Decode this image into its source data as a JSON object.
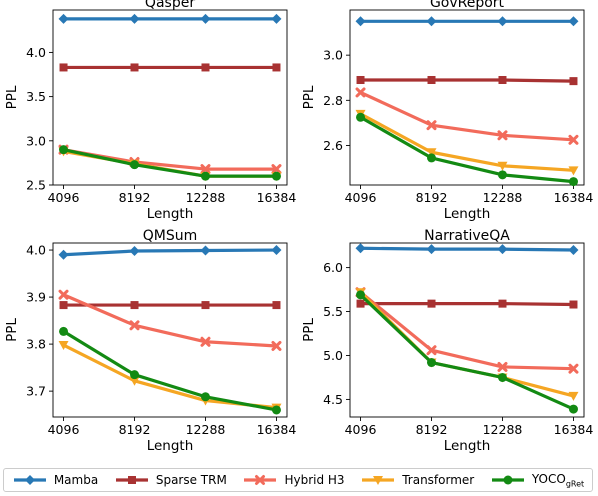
{
  "legend": [
    {
      "key": "mamba",
      "name": "Mamba",
      "color": "#2878b5",
      "marker": "diamond"
    },
    {
      "key": "sparse",
      "name": "Sparse TRM",
      "color": "#a83232",
      "marker": "square"
    },
    {
      "key": "hybrid",
      "name": "Hybrid H3",
      "color": "#f26b5b",
      "marker": "x"
    },
    {
      "key": "transformer",
      "name": "Transformer",
      "color": "#f5a623",
      "marker": "triangle-down"
    },
    {
      "key": "yoco",
      "name": "YOCO",
      "name_sub": "gRet",
      "color": "#138a13",
      "marker": "circle"
    }
  ],
  "chart_data": [
    {
      "type": "line",
      "title": "Qasper",
      "xlabel": "Length",
      "ylabel": "PPL",
      "x": [
        4096,
        8192,
        12288,
        16384
      ],
      "yticks": [
        2.5,
        3.0,
        3.5,
        4.0
      ],
      "ylim": [
        2.5,
        4.48
      ],
      "grid": false,
      "series": [
        {
          "name": "Mamba",
          "values": [
            4.38,
            4.38,
            4.38,
            4.38
          ]
        },
        {
          "name": "Sparse TRM",
          "values": [
            3.83,
            3.83,
            3.83,
            3.83
          ]
        },
        {
          "name": "Hybrid H3",
          "values": [
            2.9,
            2.76,
            2.68,
            2.68
          ]
        },
        {
          "name": "Transformer",
          "values": [
            2.88,
            2.74,
            2.6,
            2.6
          ]
        },
        {
          "name": "YOCOgRet",
          "values": [
            2.9,
            2.73,
            2.6,
            2.6
          ]
        }
      ]
    },
    {
      "type": "line",
      "title": "GovReport",
      "xlabel": "Length",
      "ylabel": "PPL",
      "x": [
        4096,
        8192,
        12288,
        16384
      ],
      "yticks": [
        2.6,
        2.8,
        3.0
      ],
      "ylim": [
        2.425,
        3.2
      ],
      "grid": false,
      "series": [
        {
          "name": "Mamba",
          "values": [
            3.15,
            3.15,
            3.15,
            3.15
          ]
        },
        {
          "name": "Sparse TRM",
          "values": [
            2.89,
            2.89,
            2.89,
            2.885
          ]
        },
        {
          "name": "Hybrid H3",
          "values": [
            2.835,
            2.69,
            2.645,
            2.625
          ]
        },
        {
          "name": "Transformer",
          "values": [
            2.74,
            2.57,
            2.51,
            2.49
          ]
        },
        {
          "name": "YOCOgRet",
          "values": [
            2.725,
            2.545,
            2.47,
            2.44
          ]
        }
      ]
    },
    {
      "type": "line",
      "title": "QMSum",
      "xlabel": "Length",
      "ylabel": "PPL",
      "x": [
        4096,
        8192,
        12288,
        16384
      ],
      "yticks": [
        3.7,
        3.8,
        3.9,
        4.0
      ],
      "ylim": [
        3.645,
        4.015
      ],
      "grid": false,
      "series": [
        {
          "name": "Mamba",
          "values": [
            3.99,
            3.998,
            3.999,
            4.0
          ]
        },
        {
          "name": "Sparse TRM",
          "values": [
            3.883,
            3.883,
            3.883,
            3.883
          ]
        },
        {
          "name": "Hybrid H3",
          "values": [
            3.905,
            3.84,
            3.805,
            3.796
          ]
        },
        {
          "name": "Transformer",
          "values": [
            3.798,
            3.722,
            3.68,
            3.665
          ]
        },
        {
          "name": "YOCOgRet",
          "values": [
            3.827,
            3.735,
            3.688,
            3.66
          ]
        }
      ]
    },
    {
      "type": "line",
      "title": "NarrativeQA",
      "xlabel": "Length",
      "ylabel": "PPL",
      "x": [
        4096,
        8192,
        12288,
        16384
      ],
      "yticks": [
        4.5,
        5.0,
        5.5,
        6.0
      ],
      "ylim": [
        4.3,
        6.28
      ],
      "grid": false,
      "series": [
        {
          "name": "Mamba",
          "values": [
            6.22,
            6.21,
            6.21,
            6.2
          ]
        },
        {
          "name": "Sparse TRM",
          "values": [
            5.59,
            5.59,
            5.59,
            5.58
          ]
        },
        {
          "name": "Hybrid H3",
          "values": [
            5.72,
            5.06,
            4.87,
            4.85
          ]
        },
        {
          "name": "Transformer",
          "values": [
            5.72,
            4.92,
            4.75,
            4.54
          ]
        },
        {
          "name": "YOCOgRet",
          "values": [
            5.69,
            4.92,
            4.75,
            4.39
          ]
        }
      ]
    }
  ]
}
